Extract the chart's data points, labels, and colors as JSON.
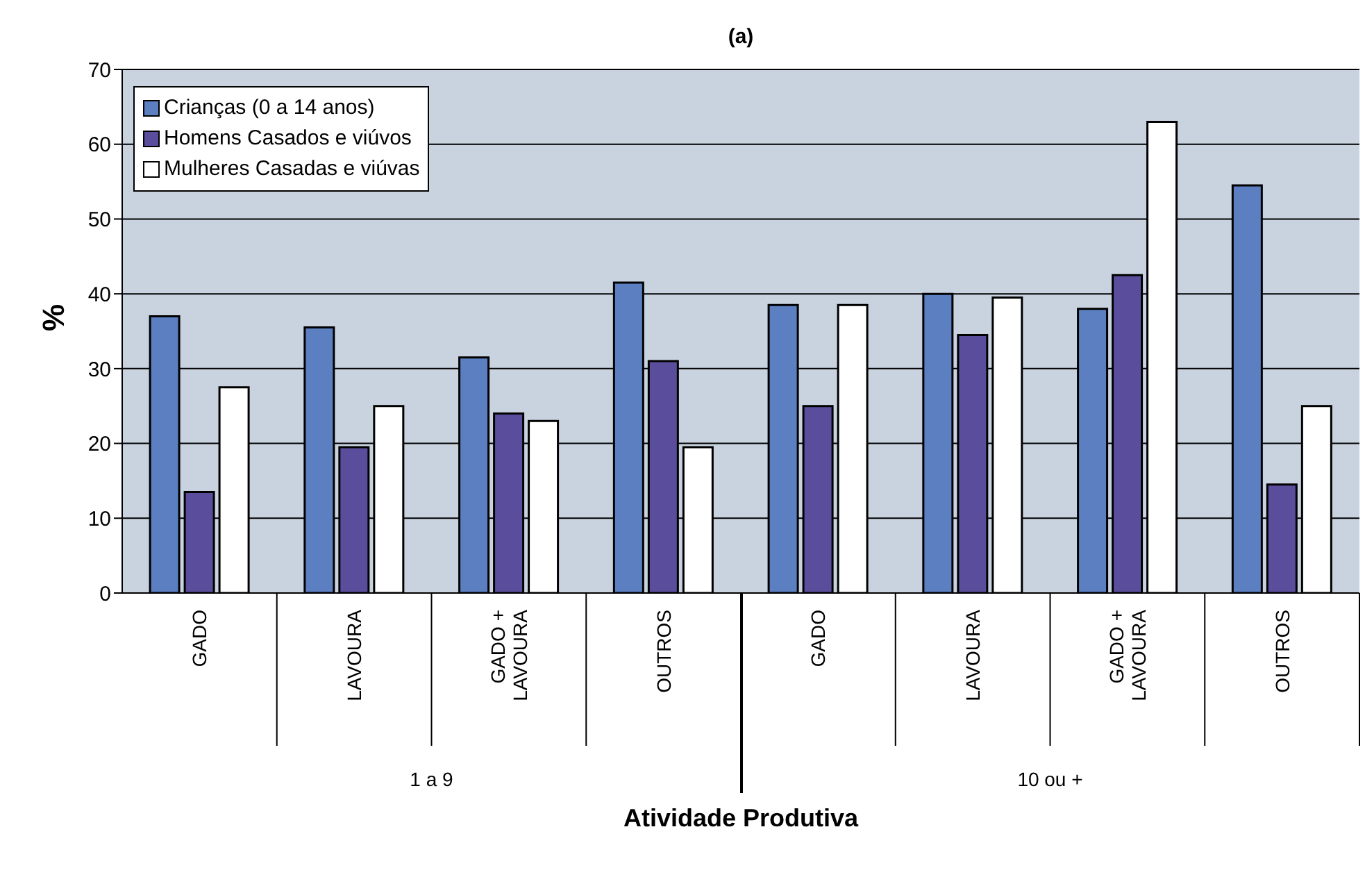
{
  "chart_data": {
    "type": "bar",
    "title": "(a)",
    "xlabel": "Atividade Produtiva",
    "ylabel": "%",
    "categories": [
      "GADO",
      "LAVOURA",
      "GADO + LAVOURA",
      "OUTROS",
      "GADO",
      "LAVOURA",
      "GADO + LAVOURA",
      "OUTROS"
    ],
    "annotations": [
      "1 a 9",
      "10 ou +"
    ],
    "series": [
      {
        "name": "Crianças (0 a 14 anos)",
        "color": "#5b7fc0",
        "values": [
          37,
          35.5,
          31.5,
          41.5,
          38.5,
          40,
          38,
          54.5
        ]
      },
      {
        "name": "Homens Casados e viúvos",
        "color": "#5a4e9c",
        "values": [
          13.5,
          19.5,
          24,
          31,
          25,
          34.5,
          42.5,
          14.5
        ]
      },
      {
        "name": "Mulheres Casadas e viúvas",
        "color": "#ffffff",
        "values": [
          27.5,
          25,
          23,
          19.5,
          38.5,
          39.5,
          63,
          25
        ]
      }
    ],
    "ylim": [
      0,
      70
    ],
    "yticks": [
      0,
      10,
      20,
      30,
      40,
      50,
      60,
      70
    ],
    "grid": "y",
    "legend": "top left"
  }
}
